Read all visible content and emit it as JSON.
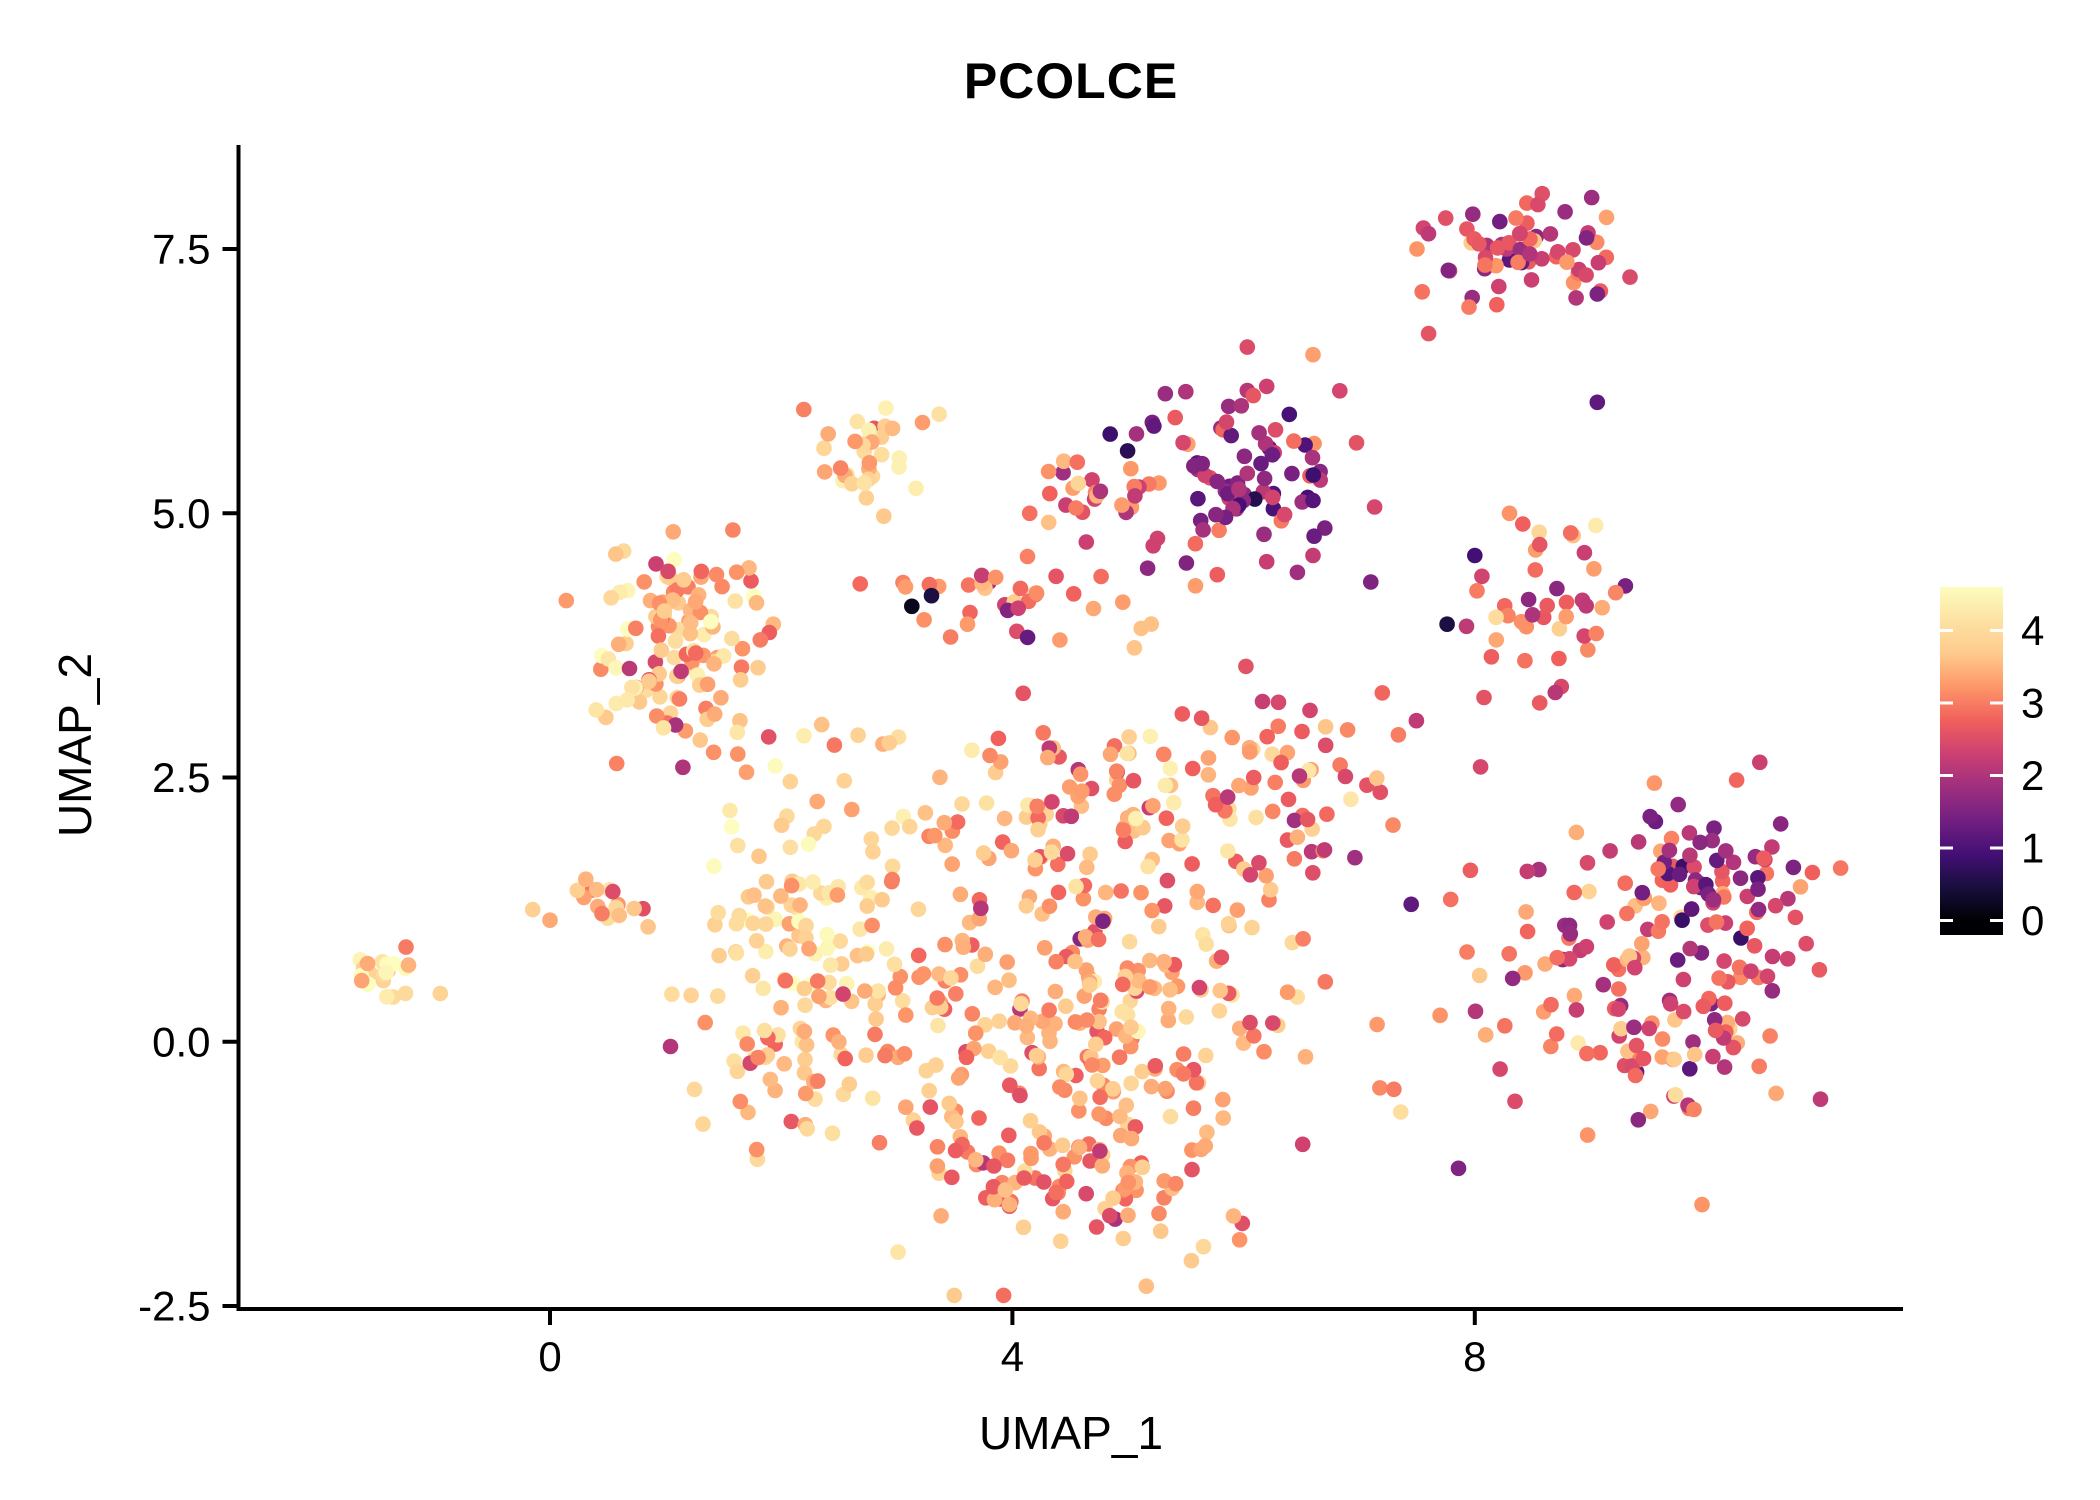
{
  "chart_data": {
    "type": "scatter",
    "title": "PCOLCE",
    "xlabel": "UMAP_1",
    "ylabel": "UMAP_2",
    "xlim": [
      -2.7,
      11.7
    ],
    "ylim": [
      -2.6,
      8.45
    ],
    "grid": false,
    "background": "#FFFFFF",
    "x_ticks": [
      {
        "value": 0,
        "label": "0"
      },
      {
        "value": 4,
        "label": "4"
      },
      {
        "value": 8,
        "label": "8"
      }
    ],
    "y_ticks": [
      {
        "value": 7.5,
        "label": "7.5"
      },
      {
        "value": 5.0,
        "label": "5.0"
      },
      {
        "value": 2.5,
        "label": "2.5"
      },
      {
        "value": 0.0,
        "label": "0.0"
      },
      {
        "value": -2.5,
        "label": "-2.5"
      }
    ],
    "point_radius": 7.8,
    "color_scale": {
      "name": "magma",
      "domain": [
        0,
        4.6
      ],
      "bar_value_range": [
        -0.2,
        4.6
      ],
      "legend_position": "right",
      "legend_ticks": [
        {
          "value": 4,
          "label": "4"
        },
        {
          "value": 3,
          "label": "3"
        },
        {
          "value": 2,
          "label": "2"
        },
        {
          "value": 1,
          "label": "1"
        },
        {
          "value": 0,
          "label": "0"
        }
      ],
      "stops": [
        [
          0.0,
          "#000004"
        ],
        [
          0.1,
          "#180f3d"
        ],
        [
          0.2,
          "#440f76"
        ],
        [
          0.3,
          "#721f81"
        ],
        [
          0.4,
          "#9e2f7f"
        ],
        [
          0.5,
          "#cd4071"
        ],
        [
          0.6,
          "#f1605d"
        ],
        [
          0.7,
          "#fd9668"
        ],
        [
          0.8,
          "#feca8d"
        ],
        [
          0.9,
          "#fde2a3"
        ],
        [
          1.0,
          "#fcfdbf"
        ]
      ]
    },
    "clusters": [
      {
        "name": "far-left-clump",
        "cx": -1.45,
        "cy": 0.62,
        "sx": 0.17,
        "sy": 0.11,
        "n": 22,
        "v_mean": 4.0,
        "v_sd": 0.5,
        "v_min": 2.6,
        "v_max": 4.6
      },
      {
        "name": "left-main",
        "cx": 1.15,
        "cy": 3.75,
        "sx": 0.38,
        "sy": 0.52,
        "n": 128,
        "v_mean": 3.5,
        "v_sd": 0.55,
        "v_min": 1.6,
        "v_max": 4.65
      },
      {
        "name": "left-small-clump",
        "cx": 0.5,
        "cy": 1.3,
        "sx": 0.18,
        "sy": 0.17,
        "n": 16,
        "v_mean": 3.4,
        "v_sd": 0.5,
        "v_min": 2.2,
        "v_max": 4.3
      },
      {
        "name": "top-left",
        "cx": 2.62,
        "cy": 5.65,
        "sx": 0.26,
        "sy": 0.32,
        "n": 34,
        "v_mean": 3.6,
        "v_sd": 0.45,
        "v_min": 2.6,
        "v_max": 4.4
      },
      {
        "name": "top-middle-red-edge",
        "cx": 4.95,
        "cy": 5.2,
        "sx": 0.38,
        "sy": 0.3,
        "n": 26,
        "v_mean": 2.9,
        "v_sd": 0.5,
        "v_min": 1.8,
        "v_max": 3.9
      },
      {
        "name": "top-middle-purple",
        "cx": 6.05,
        "cy": 5.3,
        "sx": 0.42,
        "sy": 0.45,
        "n": 85,
        "v_mean": 1.9,
        "v_sd": 0.65,
        "v_min": 0.3,
        "v_max": 3.5
      },
      {
        "name": "top-right",
        "cx": 8.55,
        "cy": 7.5,
        "sx": 0.45,
        "sy": 0.26,
        "n": 64,
        "v_mean": 2.4,
        "v_sd": 0.75,
        "v_min": 0.6,
        "v_max": 3.9
      },
      {
        "name": "right-middle",
        "cx": 8.6,
        "cy": 4.2,
        "sx": 0.34,
        "sy": 0.42,
        "n": 42,
        "v_mean": 2.9,
        "v_sd": 0.7,
        "v_min": 0.8,
        "v_max": 4.3
      },
      {
        "name": "middle-band",
        "cx": 3.9,
        "cy": 4.18,
        "sx": 0.65,
        "sy": 0.18,
        "n": 36,
        "v_mean": 2.9,
        "v_sd": 0.6,
        "v_min": 0.3,
        "v_max": 4.0
      },
      {
        "name": "central-left-bright",
        "cx": 2.2,
        "cy": 1.15,
        "sx": 0.45,
        "sy": 0.6,
        "n": 88,
        "v_mean": 4.05,
        "v_sd": 0.35,
        "v_min": 3.0,
        "v_max": 4.65
      },
      {
        "name": "central-lower-left",
        "cx": 1.95,
        "cy": -0.3,
        "sx": 0.35,
        "sy": 0.45,
        "n": 38,
        "v_mean": 3.6,
        "v_sd": 0.45,
        "v_min": 2.4,
        "v_max": 4.5
      },
      {
        "name": "central-main",
        "cx": 4.4,
        "cy": 0.3,
        "sx": 1.1,
        "sy": 0.85,
        "n": 290,
        "v_mean": 3.35,
        "v_sd": 0.5,
        "v_min": 1.5,
        "v_max": 4.5
      },
      {
        "name": "central-upper",
        "cx": 4.7,
        "cy": 2.2,
        "sx": 0.95,
        "sy": 0.55,
        "n": 110,
        "v_mean": 3.25,
        "v_sd": 0.5,
        "v_min": 1.5,
        "v_max": 4.4
      },
      {
        "name": "central-right-bump",
        "cx": 6.4,
        "cy": 2.4,
        "sx": 0.45,
        "sy": 0.5,
        "n": 55,
        "v_mean": 3.0,
        "v_sd": 0.6,
        "v_min": 1.2,
        "v_max": 4.2
      },
      {
        "name": "central-bottom",
        "cx": 4.6,
        "cy": -1.35,
        "sx": 0.75,
        "sy": 0.36,
        "n": 70,
        "v_mean": 3.2,
        "v_sd": 0.5,
        "v_min": 1.8,
        "v_max": 4.2
      },
      {
        "name": "right-main",
        "cx": 9.55,
        "cy": 0.55,
        "sx": 0.68,
        "sy": 0.75,
        "n": 155,
        "v_mean": 2.7,
        "v_sd": 0.7,
        "v_min": 0.3,
        "v_max": 4.3
      },
      {
        "name": "right-upper-purple",
        "cx": 10.15,
        "cy": 1.6,
        "sx": 0.38,
        "sy": 0.33,
        "n": 48,
        "v_mean": 1.9,
        "v_sd": 0.5,
        "v_min": 0.8,
        "v_max": 3.0
      }
    ],
    "extra_points": [
      [
        9.06,
        6.05,
        1.2
      ],
      [
        7.5,
        7.5,
        3.2
      ],
      [
        7.95,
        6.95,
        3.0
      ],
      [
        7.76,
        3.95,
        0.5
      ],
      [
        3.13,
        4.12,
        0.2
      ],
      [
        3.3,
        4.22,
        0.5
      ],
      [
        7.2,
        3.3,
        2.8
      ],
      [
        6.9,
        2.95,
        3.1
      ],
      [
        0.0,
        1.15,
        3.4
      ],
      [
        -0.15,
        1.25,
        3.8
      ],
      [
        6.6,
        4.6,
        2.2
      ],
      [
        7.1,
        4.35,
        1.5
      ],
      [
        5.5,
        6.15,
        2.0
      ],
      [
        6.2,
        6.2,
        2.3
      ],
      [
        2.35,
        3.0,
        3.6
      ],
      [
        1.7,
        2.55,
        3.3
      ],
      [
        8.3,
        5.0,
        3.2
      ],
      [
        8.0,
        4.6,
        0.9
      ],
      [
        7.45,
        1.3,
        1.2
      ],
      [
        7.7,
        0.25,
        3.2
      ],
      [
        7.3,
        -0.45,
        3.0
      ],
      [
        8.05,
        2.6,
        2.4
      ],
      [
        6.6,
        6.5,
        3.3
      ],
      [
        7.6,
        6.7,
        2.6
      ],
      [
        4.55,
        5.05,
        3.0
      ],
      [
        4.15,
        5.0,
        2.9
      ]
    ]
  }
}
